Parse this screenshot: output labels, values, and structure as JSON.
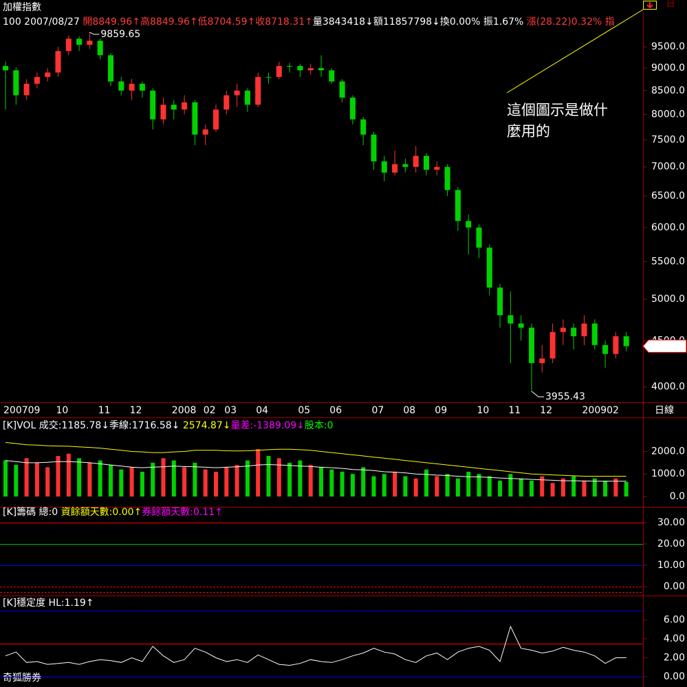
{
  "header": {
    "title": "加權指數",
    "quote": [
      {
        "text": "100 2007/08/27 ",
        "color": "#ffffff"
      },
      {
        "text": "開8849.96↑",
        "color": "#ff3c3c"
      },
      {
        "text": "高8849.96↑",
        "color": "#ff3c3c"
      },
      {
        "text": "低8704.59↑",
        "color": "#ff3c3c"
      },
      {
        "text": "收8718.31↑",
        "color": "#ff3c3c"
      },
      {
        "text": "量3843418↓",
        "color": "#ffffff"
      },
      {
        "text": "額11857798↓",
        "color": "#ffffff"
      },
      {
        "text": "換0.00% ",
        "color": "#ffffff"
      },
      {
        "text": "振1.67% ",
        "color": "#ffffff"
      },
      {
        "text": "漲(28.22)0.32% ",
        "color": "#ff3c3c"
      },
      {
        "text": "指",
        "color": "#ff3c3c"
      }
    ]
  },
  "top_right": "日",
  "footer": "奇狐勝券",
  "chart_data": [
    {
      "type": "candlestick",
      "log_scale": true,
      "up_color": "#ff3232",
      "down_color": "#00d200",
      "categories": [
        "200709",
        null,
        null,
        null,
        null,
        "10",
        null,
        null,
        null,
        "11",
        null,
        null,
        "12",
        null,
        null,
        null,
        "2008",
        null,
        null,
        "02",
        null,
        "03",
        null,
        null,
        "04",
        null,
        null,
        null,
        "05",
        null,
        null,
        "06",
        null,
        null,
        null,
        "07",
        null,
        null,
        "08",
        null,
        null,
        "09",
        null,
        null,
        null,
        "10",
        null,
        null,
        "11",
        null,
        null,
        "12",
        null,
        null,
        null,
        "200902",
        null,
        null,
        null,
        null
      ],
      "open": [
        9050,
        8950,
        8400,
        8650,
        8800,
        8900,
        9400,
        9700,
        9550,
        9650,
        9300,
        8700,
        8500,
        8650,
        8500,
        7900,
        8200,
        8100,
        8250,
        7600,
        7700,
        8100,
        8400,
        8500,
        8200,
        8800,
        8800,
        9050,
        9050,
        8950,
        9000,
        8950,
        8700,
        8350,
        7900,
        7600,
        7100,
        6900,
        7050,
        7000,
        7200,
        6950,
        7000,
        6600,
        6100,
        6000,
        5700,
        5150,
        4800,
        4700,
        4650,
        4250,
        4300,
        4600,
        4650,
        4550,
        4700,
        4450,
        4350,
        4550
      ],
      "high": [
        9150,
        9020,
        8750,
        8900,
        9000,
        9500,
        9780,
        9760,
        9859.65,
        9700,
        9350,
        8800,
        8760,
        8700,
        8550,
        8350,
        8300,
        8400,
        8300,
        7800,
        8200,
        8500,
        8650,
        8550,
        8900,
        8900,
        9150,
        9120,
        9100,
        9100,
        9300,
        9000,
        8750,
        8400,
        7950,
        7650,
        7200,
        7300,
        7150,
        7380,
        7250,
        7100,
        7050,
        6650,
        6200,
        6050,
        5750,
        5200,
        5100,
        4800,
        4700,
        4450,
        4700,
        4750,
        4700,
        4800,
        4750,
        4500,
        4600,
        4600
      ],
      "low": [
        8100,
        8200,
        8300,
        8550,
        8700,
        8800,
        9300,
        9400,
        9450,
        9200,
        8600,
        8400,
        8300,
        8350,
        7700,
        7800,
        7900,
        8000,
        7400,
        7400,
        7650,
        8000,
        8150,
        8050,
        8150,
        8650,
        8750,
        8900,
        8800,
        8850,
        8800,
        8650,
        8250,
        7800,
        7400,
        6950,
        6750,
        6850,
        6900,
        6900,
        6850,
        6850,
        6500,
        5950,
        5600,
        5550,
        5050,
        4650,
        4250,
        4500,
        3955.43,
        4150,
        4250,
        4450,
        4400,
        4450,
        4400,
        4200,
        4300,
        4380
      ],
      "close": [
        8950,
        8400,
        8650,
        8800,
        8900,
        9400,
        9700,
        9550,
        9650,
        9300,
        8700,
        8500,
        8650,
        8500,
        7900,
        8200,
        8100,
        8250,
        7600,
        7700,
        8100,
        8400,
        8500,
        8200,
        8800,
        8800,
        9050,
        9050,
        8950,
        9000,
        8950,
        8700,
        8350,
        7900,
        7600,
        7100,
        6900,
        7050,
        7000,
        7200,
        6950,
        7000,
        6600,
        6100,
        6000,
        5700,
        5150,
        4800,
        4700,
        4650,
        4250,
        4300,
        4600,
        4650,
        4550,
        4700,
        4450,
        4350,
        4550,
        4436.9
      ],
      "ylim": [
        3860,
        9980
      ],
      "yticks": [
        {
          "value": 4000,
          "label": "4000.0"
        },
        {
          "value": 4500,
          "label": "4500.0"
        },
        {
          "value": 5000,
          "label": "5000.0"
        },
        {
          "value": 5500,
          "label": "5500.0"
        },
        {
          "value": 6000,
          "label": "6000.0"
        },
        {
          "value": 6500,
          "label": "6500.0"
        },
        {
          "value": 7000,
          "label": "7000.0"
        },
        {
          "value": 7500,
          "label": "7500.0"
        },
        {
          "value": 8000,
          "label": "8000.0"
        },
        {
          "value": 8500,
          "label": "8500.0"
        },
        {
          "value": 9000,
          "label": "9000.0"
        },
        {
          "value": 9500,
          "label": "9500.0"
        }
      ],
      "period": "日線",
      "annotation": {
        "lines": [
          "這個圖示是做什",
          "麼用的"
        ],
        "color": "#ffff00"
      }
    },
    {
      "type": "bar",
      "header": [
        {
          "text": "[K]VOL 成交:1185.78↓季線:1716.58↓ ",
          "color": "#ffffff"
        },
        {
          "text": "2574.87↓",
          "color": "#ffff00"
        },
        {
          "text": "量差:-1389.09↓",
          "color": "#ff00ff"
        },
        {
          "text": "股本:0",
          "color": "#00ff00"
        }
      ],
      "values": [
        1600,
        1400,
        1700,
        1500,
        1300,
        1800,
        1900,
        1700,
        1500,
        1600,
        1400,
        1200,
        1300,
        1100,
        1500,
        1700,
        1600,
        1300,
        1500,
        1200,
        1100,
        1300,
        1400,
        1600,
        2100,
        1800,
        1700,
        1500,
        1600,
        1400,
        1300,
        1200,
        1100,
        1000,
        1300,
        900,
        1000,
        1100,
        900,
        800,
        1200,
        900,
        1000,
        800,
        1100,
        1000,
        900,
        700,
        1000,
        800,
        700,
        900,
        600,
        800,
        900,
        700,
        800,
        700,
        800,
        650
      ],
      "lines": [
        {
          "color": "#ffff00",
          "values": [
            2400,
            2350,
            2300,
            2280,
            2250,
            2240,
            2230,
            2200,
            2180,
            2150,
            2100,
            2050,
            2000,
            1980,
            1950,
            1950,
            1980,
            2000,
            2050,
            2050,
            2050,
            2030,
            2020,
            2030,
            2050,
            2080,
            2100,
            2100,
            2080,
            2050,
            2000,
            1950,
            1900,
            1850,
            1800,
            1750,
            1700,
            1650,
            1600,
            1550,
            1500,
            1450,
            1400,
            1350,
            1300,
            1250,
            1200,
            1150,
            1100,
            1050,
            1000,
            980,
            960,
            940,
            920,
            900,
            900,
            900,
            900,
            900
          ]
        },
        {
          "color": "#ffffff",
          "values": [
            1600,
            1550,
            1500,
            1500,
            1520,
            1550,
            1550,
            1530,
            1500,
            1450,
            1400,
            1350,
            1300,
            1280,
            1300,
            1320,
            1350,
            1330,
            1320,
            1300,
            1280,
            1300,
            1320,
            1350,
            1400,
            1420,
            1400,
            1380,
            1350,
            1330,
            1300,
            1280,
            1250,
            1200,
            1180,
            1150,
            1100,
            1080,
            1050,
            1000,
            980,
            950,
            930,
            900,
            880,
            870,
            850,
            820,
            800,
            780,
            760,
            740,
            720,
            700,
            700,
            690,
            680,
            680,
            680,
            680
          ]
        }
      ],
      "ylim": [
        0,
        2900
      ],
      "yticks": [
        {
          "value": 0,
          "label": "0.0"
        },
        {
          "value": 1000,
          "label": "1000.0"
        },
        {
          "value": 2000,
          "label": "2000.0"
        }
      ]
    },
    {
      "type": "levels",
      "header": [
        {
          "text": "[K]籌碼 總:0 ",
          "color": "#ffffff"
        },
        {
          "text": "資餘額天數:0.00↑",
          "color": "#ffff00"
        },
        {
          "text": "券餘額天數:0.11↑",
          "color": "#ff00ff"
        }
      ],
      "levels": [
        {
          "value": 30,
          "color": "#ff0000"
        },
        {
          "value": 20,
          "color": "#00c000"
        },
        {
          "value": 10,
          "color": "#0000ff"
        },
        {
          "value": 0,
          "color": "#ff0000",
          "dash": true
        },
        {
          "value": -2.5,
          "color": "#ff0000",
          "dash": true
        }
      ],
      "ylim": [
        -3.9,
        37.4
      ],
      "yticks": [
        {
          "value": 0,
          "label": "0.00"
        },
        {
          "value": 10,
          "label": "10.00"
        },
        {
          "value": 20,
          "label": "20.00"
        },
        {
          "value": 30,
          "label": "30.00"
        }
      ]
    },
    {
      "type": "line",
      "header": [
        {
          "text": "[K]穩定度 HL:1.19↑",
          "color": "#ffffff"
        }
      ],
      "color": "#ffffff",
      "levels": [
        {
          "value": 7,
          "color": "#0000ff"
        },
        {
          "value": 3.5,
          "color": "#ff0000"
        },
        {
          "value": 0,
          "color": "#0000ff"
        }
      ],
      "values": [
        2.2,
        2.6,
        1.5,
        1.6,
        1.3,
        1.4,
        1.5,
        1.3,
        1.6,
        1.8,
        1.7,
        1.5,
        2.0,
        1.6,
        3.2,
        2.2,
        1.5,
        1.8,
        3.0,
        2.6,
        2.0,
        1.6,
        1.8,
        1.5,
        2.3,
        1.8,
        1.3,
        1.2,
        1.4,
        1.8,
        1.6,
        1.5,
        1.8,
        2.2,
        2.5,
        3.0,
        2.6,
        2.4,
        1.8,
        1.5,
        2.2,
        2.5,
        1.8,
        2.6,
        3.0,
        3.2,
        2.8,
        1.6,
        5.3,
        3.0,
        2.8,
        2.5,
        2.7,
        3.1,
        2.8,
        2.6,
        2.2,
        1.4,
        2.0,
        2.0
      ],
      "ylim": [
        -0.8,
        8.5
      ],
      "yticks": [
        {
          "value": 0,
          "label": "0.00"
        },
        {
          "value": 2,
          "label": "2.00"
        },
        {
          "value": 4,
          "label": "4.00"
        },
        {
          "value": 6,
          "label": "6.00"
        }
      ]
    }
  ]
}
